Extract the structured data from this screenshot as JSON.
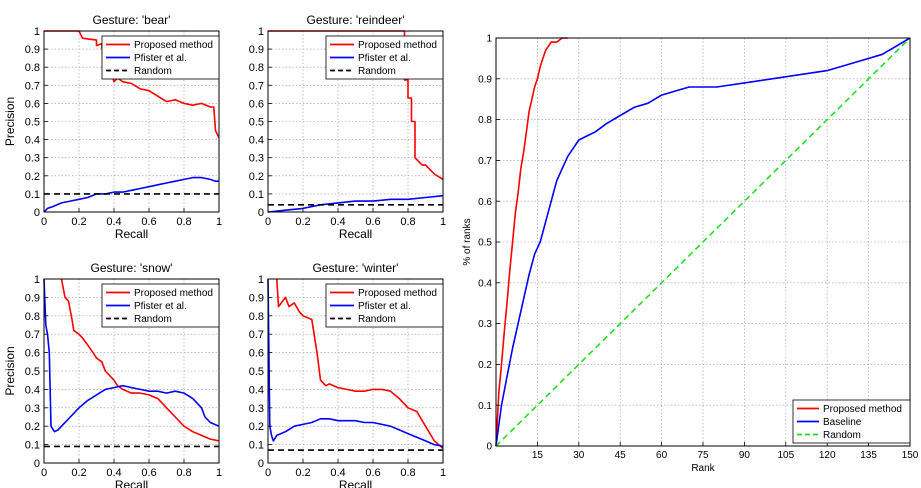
{
  "chart_data": [
    {
      "type": "line",
      "title": "Gesture: 'bear'",
      "xlabel": "Recall",
      "ylabel": "Precision",
      "xlim": [
        0,
        1
      ],
      "ylim": [
        0,
        1
      ],
      "xticks": [
        0,
        0.2,
        0.4,
        0.6,
        0.8,
        1
      ],
      "yticks": [
        0,
        0.1,
        0.2,
        0.3,
        0.4,
        0.5,
        0.6,
        0.7,
        0.8,
        0.9,
        1
      ],
      "grid": true,
      "legend": "top-right",
      "series": [
        {
          "name": "Proposed method",
          "color": "#ff0000",
          "x": [
            0,
            0.02,
            0.2,
            0.22,
            0.3,
            0.3,
            0.33,
            0.34,
            0.38,
            0.4,
            0.42,
            0.45,
            0.5,
            0.55,
            0.6,
            0.65,
            0.7,
            0.75,
            0.8,
            0.85,
            0.9,
            0.95,
            0.97,
            0.98,
            1
          ],
          "y": [
            1,
            1,
            1,
            0.96,
            0.95,
            0.92,
            0.93,
            0.8,
            0.78,
            0.72,
            0.74,
            0.72,
            0.71,
            0.68,
            0.67,
            0.64,
            0.61,
            0.62,
            0.6,
            0.59,
            0.6,
            0.58,
            0.58,
            0.45,
            0.41
          ]
        },
        {
          "name": "Pfister et al.",
          "color": "#0000ff",
          "x": [
            0,
            0.01,
            0.02,
            0.05,
            0.1,
            0.15,
            0.2,
            0.25,
            0.3,
            0.35,
            0.4,
            0.45,
            0.5,
            0.55,
            0.6,
            0.65,
            0.7,
            0.75,
            0.8,
            0.85,
            0.9,
            0.95,
            0.98,
            1
          ],
          "y": [
            0,
            0.01,
            0.02,
            0.03,
            0.05,
            0.06,
            0.07,
            0.08,
            0.1,
            0.1,
            0.11,
            0.11,
            0.12,
            0.13,
            0.14,
            0.15,
            0.16,
            0.17,
            0.18,
            0.19,
            0.19,
            0.18,
            0.17,
            0.17
          ]
        },
        {
          "name": "Random",
          "color": "#000000",
          "dashed": true,
          "x": [
            0,
            1
          ],
          "y": [
            0.1,
            0.1
          ]
        }
      ]
    },
    {
      "type": "line",
      "title": "Gesture: 'reindeer'",
      "xlabel": "Recall",
      "ylabel": "",
      "xlim": [
        0,
        1
      ],
      "ylim": [
        0,
        1
      ],
      "xticks": [
        0,
        0.2,
        0.4,
        0.6,
        0.8,
        1
      ],
      "yticks": [
        0,
        0.1,
        0.2,
        0.3,
        0.4,
        0.5,
        0.6,
        0.7,
        0.8,
        0.9,
        1
      ],
      "grid": true,
      "legend": "top-right",
      "series": [
        {
          "name": "Proposed method",
          "color": "#ff0000",
          "x": [
            0,
            0.6,
            0.78,
            0.78,
            0.8,
            0.8,
            0.82,
            0.82,
            0.84,
            0.84,
            0.86,
            0.88,
            0.9,
            0.95,
            1
          ],
          "y": [
            1,
            1,
            1,
            0.73,
            0.73,
            0.63,
            0.63,
            0.5,
            0.5,
            0.3,
            0.28,
            0.26,
            0.26,
            0.21,
            0.18
          ]
        },
        {
          "name": "Pfister et al.",
          "color": "#0000ff",
          "x": [
            0,
            0.1,
            0.2,
            0.3,
            0.4,
            0.5,
            0.6,
            0.7,
            0.8,
            0.9,
            1
          ],
          "y": [
            0,
            0.01,
            0.02,
            0.04,
            0.05,
            0.06,
            0.06,
            0.07,
            0.07,
            0.08,
            0.09
          ]
        },
        {
          "name": "Random",
          "color": "#000000",
          "dashed": true,
          "x": [
            0,
            1
          ],
          "y": [
            0.04,
            0.04
          ]
        }
      ]
    },
    {
      "type": "line",
      "title": "Gesture: 'snow'",
      "xlabel": "Recall",
      "ylabel": "Precision",
      "xlim": [
        0,
        1
      ],
      "ylim": [
        0,
        1
      ],
      "xticks": [
        0,
        0.2,
        0.4,
        0.6,
        0.8,
        1
      ],
      "yticks": [
        0,
        0.1,
        0.2,
        0.3,
        0.4,
        0.5,
        0.6,
        0.7,
        0.8,
        0.9,
        1
      ],
      "grid": true,
      "legend": "top-right",
      "series": [
        {
          "name": "Proposed method",
          "color": "#ff0000",
          "x": [
            0.1,
            0.12,
            0.14,
            0.16,
            0.17,
            0.2,
            0.22,
            0.25,
            0.28,
            0.3,
            0.33,
            0.35,
            0.38,
            0.4,
            0.42,
            0.45,
            0.5,
            0.55,
            0.6,
            0.65,
            0.7,
            0.75,
            0.8,
            0.85,
            0.9,
            0.95,
            1
          ],
          "y": [
            1,
            0.9,
            0.88,
            0.78,
            0.72,
            0.7,
            0.68,
            0.64,
            0.6,
            0.57,
            0.55,
            0.5,
            0.47,
            0.45,
            0.42,
            0.4,
            0.38,
            0.38,
            0.37,
            0.35,
            0.3,
            0.25,
            0.2,
            0.17,
            0.15,
            0.13,
            0.12
          ]
        },
        {
          "name": "Pfister et al.",
          "color": "#0000ff",
          "x": [
            0,
            0.01,
            0.02,
            0.03,
            0.04,
            0.06,
            0.08,
            0.1,
            0.15,
            0.2,
            0.25,
            0.3,
            0.35,
            0.4,
            0.45,
            0.5,
            0.55,
            0.6,
            0.65,
            0.7,
            0.75,
            0.8,
            0.85,
            0.9,
            0.92,
            0.95,
            1
          ],
          "y": [
            1,
            0.75,
            0.7,
            0.6,
            0.2,
            0.17,
            0.18,
            0.2,
            0.25,
            0.3,
            0.34,
            0.37,
            0.4,
            0.41,
            0.42,
            0.41,
            0.4,
            0.39,
            0.39,
            0.38,
            0.39,
            0.38,
            0.35,
            0.3,
            0.25,
            0.22,
            0.2
          ]
        },
        {
          "name": "Random",
          "color": "#000000",
          "dashed": true,
          "x": [
            0,
            1
          ],
          "y": [
            0.09,
            0.09
          ]
        }
      ]
    },
    {
      "type": "line",
      "title": "Gesture: 'winter'",
      "xlabel": "Recall",
      "ylabel": "",
      "xlim": [
        0,
        1
      ],
      "ylim": [
        0,
        1
      ],
      "xticks": [
        0,
        0.2,
        0.4,
        0.6,
        0.8,
        1
      ],
      "yticks": [
        0,
        0.1,
        0.2,
        0.3,
        0.4,
        0.5,
        0.6,
        0.7,
        0.8,
        0.9,
        1
      ],
      "grid": true,
      "legend": "top-right",
      "series": [
        {
          "name": "Proposed method",
          "color": "#ff0000",
          "x": [
            0.05,
            0.06,
            0.1,
            0.12,
            0.15,
            0.18,
            0.2,
            0.25,
            0.28,
            0.3,
            0.33,
            0.35,
            0.4,
            0.45,
            0.5,
            0.55,
            0.6,
            0.65,
            0.7,
            0.75,
            0.8,
            0.85,
            0.9,
            0.95,
            1
          ],
          "y": [
            1,
            0.85,
            0.9,
            0.85,
            0.87,
            0.82,
            0.8,
            0.78,
            0.6,
            0.45,
            0.42,
            0.43,
            0.41,
            0.4,
            0.39,
            0.39,
            0.4,
            0.4,
            0.39,
            0.35,
            0.3,
            0.28,
            0.2,
            0.12,
            0.08
          ]
        },
        {
          "name": "Pfister et al.",
          "color": "#0000ff",
          "x": [
            0,
            0.01,
            0.02,
            0.03,
            0.05,
            0.1,
            0.15,
            0.2,
            0.25,
            0.3,
            0.35,
            0.4,
            0.45,
            0.5,
            0.55,
            0.6,
            0.65,
            0.7,
            0.75,
            0.8,
            0.85,
            0.9,
            0.95,
            1
          ],
          "y": [
            1,
            0.2,
            0.15,
            0.12,
            0.15,
            0.17,
            0.2,
            0.21,
            0.22,
            0.24,
            0.24,
            0.23,
            0.23,
            0.23,
            0.22,
            0.22,
            0.21,
            0.2,
            0.18,
            0.16,
            0.14,
            0.12,
            0.1,
            0.09
          ]
        },
        {
          "name": "Random",
          "color": "#000000",
          "dashed": true,
          "x": [
            0,
            1
          ],
          "y": [
            0.07,
            0.07
          ]
        }
      ]
    },
    {
      "type": "line",
      "title": "",
      "xlabel": "Rank",
      "ylabel": "% of ranks",
      "xlim": [
        0,
        150
      ],
      "ylim": [
        0,
        1
      ],
      "xticks": [
        15,
        30,
        45,
        60,
        75,
        90,
        105,
        120,
        135,
        150
      ],
      "yticks": [
        0,
        0.1,
        0.2,
        0.3,
        0.4,
        0.5,
        0.6,
        0.7,
        0.8,
        0.9,
        1
      ],
      "grid": true,
      "legend": "bottom-right",
      "series": [
        {
          "name": "Proposed method",
          "color": "#ff0000",
          "x": [
            0,
            1,
            2,
            3,
            4,
            5,
            6,
            7,
            8,
            9,
            10,
            11,
            12,
            13,
            14,
            15,
            16,
            17,
            18,
            19,
            20,
            22,
            24,
            26
          ],
          "y": [
            0,
            0.13,
            0.2,
            0.28,
            0.35,
            0.43,
            0.5,
            0.57,
            0.62,
            0.68,
            0.72,
            0.77,
            0.82,
            0.85,
            0.88,
            0.9,
            0.93,
            0.95,
            0.97,
            0.98,
            0.99,
            0.99,
            1,
            1
          ]
        },
        {
          "name": "Baseline",
          "color": "#0000ff",
          "x": [
            0,
            2,
            4,
            6,
            8,
            10,
            12,
            14,
            16,
            18,
            20,
            22,
            24,
            26,
            28,
            30,
            33,
            36,
            40,
            45,
            50,
            55,
            60,
            65,
            70,
            80,
            90,
            100,
            110,
            120,
            130,
            140,
            150
          ],
          "y": [
            0,
            0.1,
            0.17,
            0.24,
            0.3,
            0.36,
            0.42,
            0.47,
            0.5,
            0.55,
            0.6,
            0.65,
            0.68,
            0.71,
            0.73,
            0.75,
            0.76,
            0.77,
            0.79,
            0.81,
            0.83,
            0.84,
            0.86,
            0.87,
            0.88,
            0.88,
            0.89,
            0.9,
            0.91,
            0.92,
            0.94,
            0.96,
            1
          ]
        },
        {
          "name": "Random",
          "color": "#22dd22",
          "dashed": true,
          "x": [
            0,
            150
          ],
          "y": [
            0,
            1
          ]
        }
      ]
    }
  ]
}
